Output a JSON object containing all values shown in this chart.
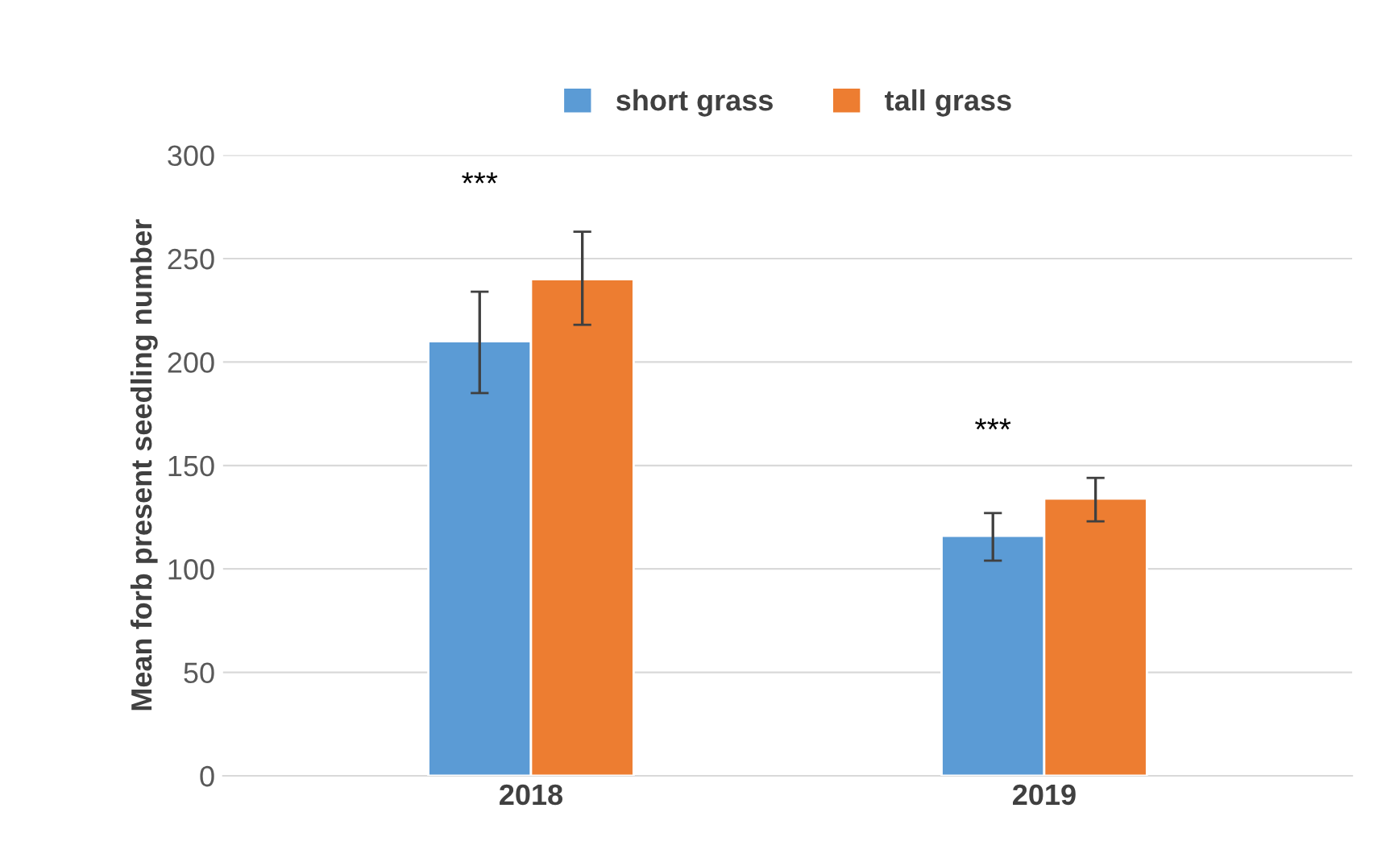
{
  "chart_data": {
    "type": "bar",
    "ylabel": "Mean forb present seedling number",
    "categories": [
      "2018",
      "2019"
    ],
    "series": [
      {
        "name": "short grass",
        "color": "#5b9bd5",
        "values": [
          210,
          116
        ],
        "errors": [
          [
            185,
            234
          ],
          [
            104,
            127
          ]
        ]
      },
      {
        "name": "tall grass",
        "color": "#ed7d31",
        "values": [
          240,
          134
        ],
        "errors": [
          [
            218,
            263
          ],
          [
            123,
            144
          ]
        ]
      }
    ],
    "ylim": [
      0,
      300
    ],
    "yticks": [
      0,
      50,
      100,
      150,
      200,
      250,
      300
    ],
    "grid": "y",
    "legend": "top",
    "annotations": [
      "***",
      "***"
    ]
  }
}
